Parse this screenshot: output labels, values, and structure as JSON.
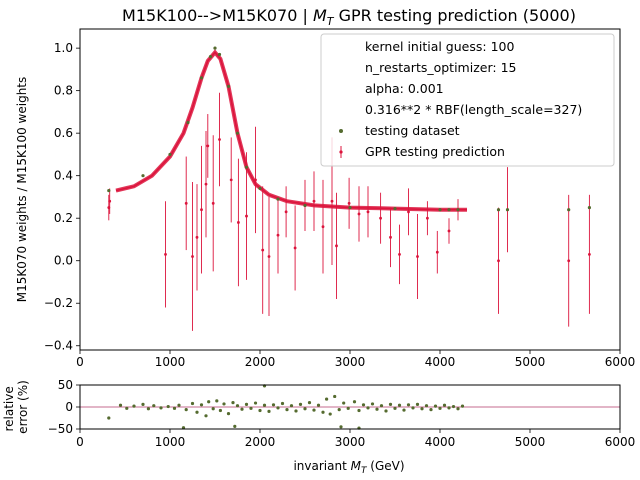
{
  "chart_data": [
    {
      "type": "scatter",
      "title": "M15K100-->M15K070 | M_T GPR testing prediction (5000)",
      "title_parts": {
        "prefix": "M15K100-->M15K070 | ",
        "symbol": "M",
        "subscript": "T",
        "suffix": " GPR testing prediction (5000)"
      },
      "ylabel": "M15K070 weights / M15K100 weights",
      "xlim": [
        0,
        6000
      ],
      "ylim": [
        -0.42,
        1.09
      ],
      "x_ticks": [
        0,
        1000,
        2000,
        3000,
        4000,
        5000,
        6000
      ],
      "x_tick_labels": [
        "0",
        "1000",
        "2000",
        "3000",
        "4000",
        "5000",
        "6000"
      ],
      "y_ticks": [
        -0.4,
        -0.2,
        0.0,
        0.2,
        0.4,
        0.6,
        0.8,
        1.0
      ],
      "y_tick_labels": [
        "−0.4",
        "−0.2",
        "0.0",
        "0.2",
        "0.4",
        "0.6",
        "0.8",
        "1.0"
      ],
      "grid": false,
      "legend_position": "top-right",
      "legend": [
        {
          "label": "kernel initial guess: 100",
          "marker": "none"
        },
        {
          "label": "n_restarts_optimizer: 15",
          "marker": "none"
        },
        {
          "label": "alpha: 0.001",
          "marker": "none"
        },
        {
          "label": "0.316**2 * RBF(length_scale=327)",
          "marker": "none"
        },
        {
          "label": "testing dataset",
          "marker": "dot"
        },
        {
          "label": "GPR testing prediction",
          "marker": "errorbar"
        }
      ],
      "series": [
        {
          "name": "testing dataset",
          "color": "#556b2f",
          "points": [
            [
              320,
              0.33
            ],
            [
              700,
              0.4
            ],
            [
              1000,
              0.5
            ],
            [
              1200,
              0.65
            ],
            [
              1350,
              0.86
            ],
            [
              1450,
              0.96
            ],
            [
              1500,
              1.0
            ],
            [
              1550,
              0.97
            ],
            [
              1650,
              0.82
            ],
            [
              1750,
              0.6
            ],
            [
              1850,
              0.44
            ],
            [
              2000,
              0.34
            ],
            [
              2200,
              0.29
            ],
            [
              2500,
              0.26
            ],
            [
              3000,
              0.25
            ],
            [
              3500,
              0.245
            ],
            [
              4000,
              0.24
            ],
            [
              4100,
              0.24
            ],
            [
              4200,
              0.24
            ],
            [
              4650,
              0.24
            ],
            [
              4750,
              0.24
            ],
            [
              5430,
              0.24
            ],
            [
              5660,
              0.25
            ]
          ]
        },
        {
          "name": "GPR testing prediction",
          "color": "#dc143c",
          "curve": [
            [
              400,
              0.33
            ],
            [
              600,
              0.35
            ],
            [
              800,
              0.4
            ],
            [
              1000,
              0.49
            ],
            [
              1150,
              0.6
            ],
            [
              1250,
              0.72
            ],
            [
              1350,
              0.86
            ],
            [
              1420,
              0.94
            ],
            [
              1500,
              0.98
            ],
            [
              1560,
              0.95
            ],
            [
              1650,
              0.82
            ],
            [
              1750,
              0.6
            ],
            [
              1850,
              0.44
            ],
            [
              1950,
              0.36
            ],
            [
              2100,
              0.31
            ],
            [
              2300,
              0.28
            ],
            [
              2600,
              0.26
            ],
            [
              3000,
              0.25
            ],
            [
              3500,
              0.245
            ],
            [
              4000,
              0.24
            ],
            [
              4300,
              0.24
            ]
          ],
          "outliers": [
            [
              320,
              0.25,
              0.06
            ],
            [
              330,
              0.28,
              0.06
            ],
            [
              950,
              0.03,
              0.25
            ],
            [
              1180,
              0.27,
              0.22
            ],
            [
              1250,
              0.02,
              0.35
            ],
            [
              1300,
              0.11,
              0.25
            ],
            [
              1350,
              0.24,
              0.3
            ],
            [
              1400,
              0.36,
              0.25
            ],
            [
              1420,
              0.54,
              0.15
            ],
            [
              1480,
              0.27,
              0.32
            ],
            [
              1550,
              0.57,
              0.22
            ],
            [
              1680,
              0.38,
              0.2
            ],
            [
              1760,
              0.18,
              0.3
            ],
            [
              1850,
              0.21,
              0.3
            ],
            [
              1950,
              0.38,
              0.25
            ],
            [
              2030,
              0.05,
              0.3
            ],
            [
              2100,
              0.02,
              0.28
            ],
            [
              2200,
              0.12,
              0.18
            ],
            [
              2290,
              0.23,
              0.12
            ],
            [
              2390,
              0.06,
              0.2
            ],
            [
              2500,
              0.26,
              0.12
            ],
            [
              2600,
              0.28,
              0.14
            ],
            [
              2700,
              0.16,
              0.22
            ],
            [
              2800,
              0.28,
              0.3
            ],
            [
              2850,
              0.07,
              0.25
            ],
            [
              2990,
              0.27,
              0.12
            ],
            [
              3100,
              0.22,
              0.13
            ],
            [
              3200,
              0.23,
              0.12
            ],
            [
              3340,
              0.2,
              0.12
            ],
            [
              3450,
              0.11,
              0.14
            ],
            [
              3550,
              0.03,
              0.14
            ],
            [
              3650,
              0.23,
              0.11
            ],
            [
              3750,
              0.02,
              0.2
            ],
            [
              3860,
              0.2,
              0.08
            ],
            [
              3970,
              0.04,
              0.1
            ],
            [
              4100,
              0.14,
              0.06
            ],
            [
              4200,
              0.24,
              0.05
            ],
            [
              4650,
              0.0,
              0.25
            ],
            [
              4750,
              0.24,
              0.2
            ],
            [
              5430,
              0.0,
              0.31
            ],
            [
              5660,
              0.03,
              0.28
            ]
          ]
        }
      ]
    },
    {
      "type": "scatter",
      "xlabel": "invariant M_T (GeV)",
      "xlabel_parts": {
        "prefix": "invariant ",
        "symbol": "M",
        "subscript": "T",
        "suffix": " (GeV)"
      },
      "ylabel_lines": [
        "relative",
        "error (%)"
      ],
      "xlim": [
        0,
        6000
      ],
      "ylim": [
        -50,
        50
      ],
      "x_ticks": [
        0,
        1000,
        2000,
        3000,
        4000,
        5000,
        6000
      ],
      "x_tick_labels": [
        "0",
        "1000",
        "2000",
        "3000",
        "4000",
        "5000",
        "6000"
      ],
      "y_ticks": [
        -50,
        0,
        50
      ],
      "y_tick_labels": [
        "−50",
        "0",
        "50"
      ],
      "reference_line_y": 0,
      "reference_line_color": "#b03a6a",
      "series": [
        {
          "color": "#556b2f",
          "points": [
            [
              320,
              -25
            ],
            [
              450,
              4
            ],
            [
              520,
              -3
            ],
            [
              600,
              2
            ],
            [
              700,
              6
            ],
            [
              760,
              -4
            ],
            [
              820,
              3
            ],
            [
              900,
              -2
            ],
            [
              980,
              1
            ],
            [
              1050,
              -3
            ],
            [
              1100,
              4
            ],
            [
              1180,
              -6
            ],
            [
              1250,
              8
            ],
            [
              1300,
              -12
            ],
            [
              1350,
              5
            ],
            [
              1400,
              -20
            ],
            [
              1430,
              12
            ],
            [
              1480,
              -4
            ],
            [
              1520,
              14
            ],
            [
              1560,
              -8
            ],
            [
              1600,
              7
            ],
            [
              1650,
              -15
            ],
            [
              1700,
              10
            ],
            [
              1720,
              -44
            ],
            [
              1750,
              3
            ],
            [
              1800,
              -5
            ],
            [
              1850,
              6
            ],
            [
              1900,
              -3
            ],
            [
              1950,
              9
            ],
            [
              2000,
              -8
            ],
            [
              2050,
              4
            ],
            [
              2100,
              -10
            ],
            [
              2150,
              5
            ],
            [
              2200,
              -2
            ],
            [
              2250,
              8
            ],
            [
              2300,
              -6
            ],
            [
              2350,
              3
            ],
            [
              2400,
              -9
            ],
            [
              2450,
              6
            ],
            [
              2500,
              -4
            ],
            [
              2550,
              10
            ],
            [
              2600,
              -7
            ],
            [
              2650,
              4
            ],
            [
              2700,
              -12
            ],
            [
              2740,
              18
            ],
            [
              2780,
              -16
            ],
            [
              2830,
              24
            ],
            [
              2880,
              -6
            ],
            [
              2930,
              9
            ],
            [
              2980,
              -3
            ],
            [
              3050,
              12
            ],
            [
              3100,
              -8
            ],
            [
              3150,
              5
            ],
            [
              3200,
              -2
            ],
            [
              3250,
              7
            ],
            [
              3300,
              -5
            ],
            [
              3350,
              3
            ],
            [
              3400,
              -9
            ],
            [
              3450,
              6
            ],
            [
              3500,
              -3
            ],
            [
              3550,
              4
            ],
            [
              3600,
              -7
            ],
            [
              3650,
              5
            ],
            [
              3700,
              -2
            ],
            [
              3750,
              6
            ],
            [
              3800,
              -4
            ],
            [
              3850,
              3
            ],
            [
              3900,
              -6
            ],
            [
              3950,
              2
            ],
            [
              4000,
              -3
            ],
            [
              4050,
              4
            ],
            [
              4100,
              -2
            ],
            [
              4150,
              1
            ],
            [
              4200,
              -4
            ],
            [
              4250,
              2
            ],
            [
              2900,
              -45
            ],
            [
              3100,
              -48
            ],
            [
              2050,
              48
            ],
            [
              1150,
              -47
            ]
          ]
        }
      ]
    }
  ]
}
